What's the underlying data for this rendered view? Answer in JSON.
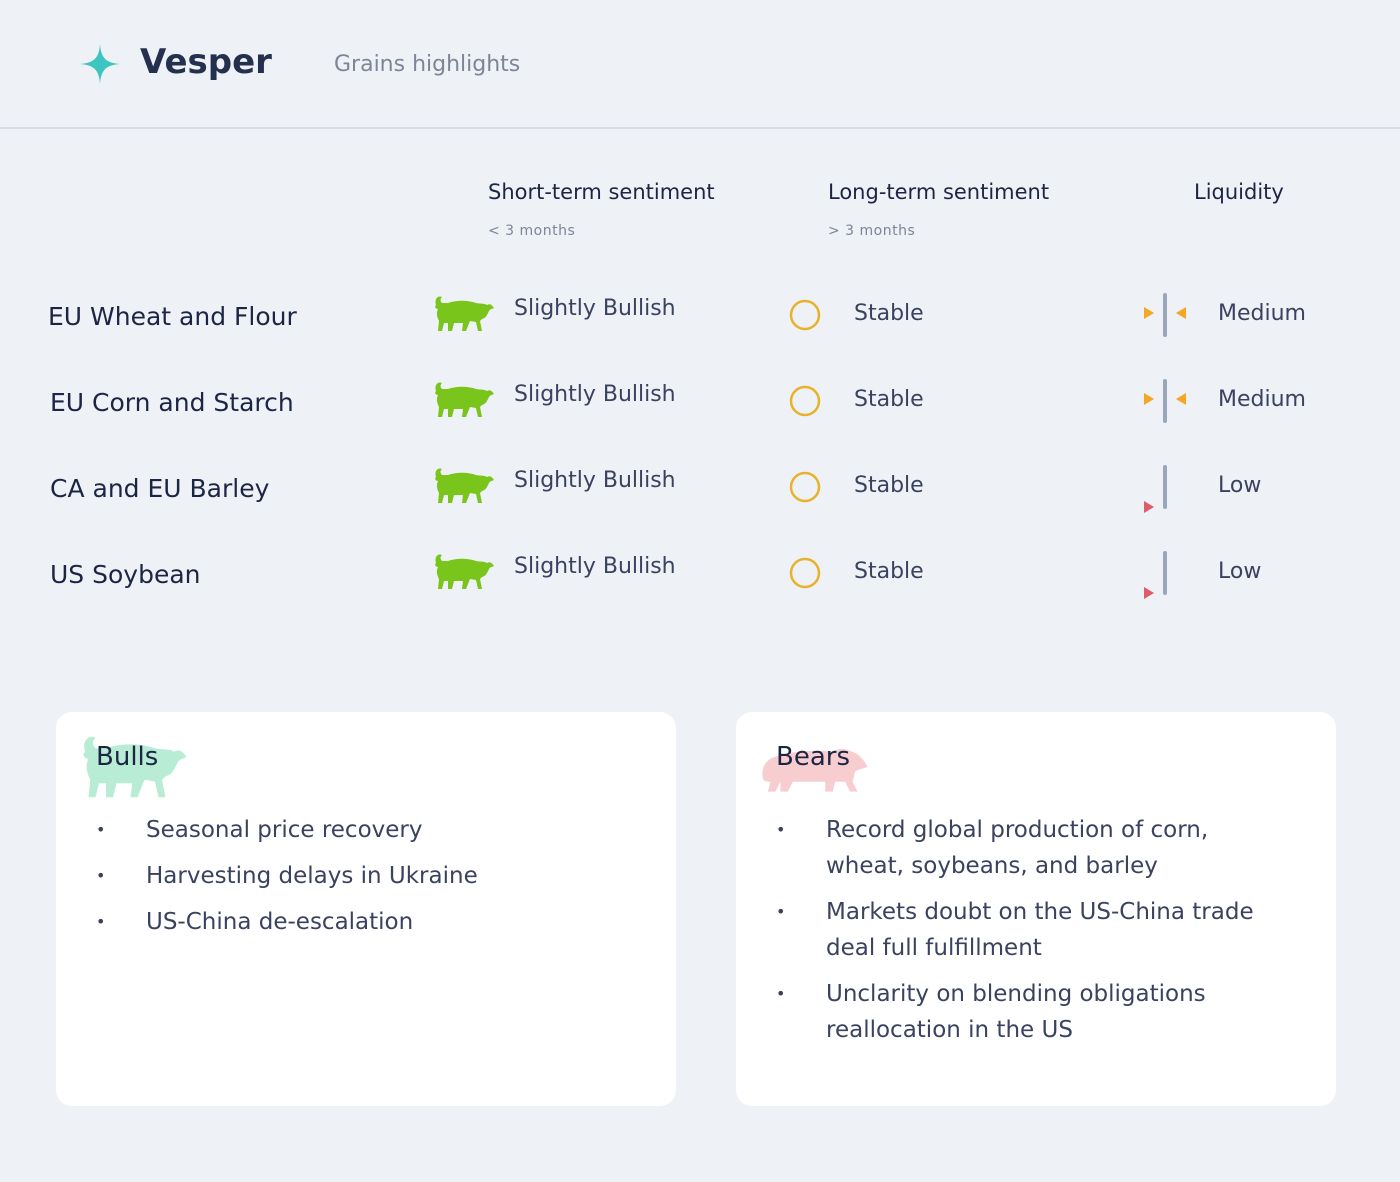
{
  "header": {
    "brand": "Vesper",
    "subtitle": "Grains highlights"
  },
  "table": {
    "columns": [
      {
        "title": "Short-term sentiment",
        "note": "< 3 months"
      },
      {
        "title": "Long-term sentiment",
        "note": "> 3 months"
      },
      {
        "title": "Liquidity"
      }
    ],
    "rows": [
      {
        "name": "EU Wheat and Flour",
        "short_term": "Slightly Bullish",
        "long_term": "Stable",
        "liquidity": "Medium"
      },
      {
        "name": "EU Corn and Starch",
        "short_term": "Slightly Bullish",
        "long_term": "Stable",
        "liquidity": "Medium"
      },
      {
        "name": "CA and EU Barley",
        "short_term": "Slightly Bullish",
        "long_term": "Stable",
        "liquidity": "Low"
      },
      {
        "name": "US Soybean",
        "short_term": "Slightly Bullish",
        "long_term": "Stable",
        "liquidity": "Low"
      }
    ]
  },
  "bulls": {
    "title": "Bulls",
    "items": [
      "Seasonal price recovery",
      "Harvesting delays in Ukraine",
      "US-China de-escalation"
    ]
  },
  "bears": {
    "title": "Bears",
    "items": [
      "Record global production of corn, wheat, soybeans, and barley",
      "Markets doubt on the US-China trade deal full fulfillment",
      "Unclarity on blending obligations reallocation in the US"
    ]
  }
}
